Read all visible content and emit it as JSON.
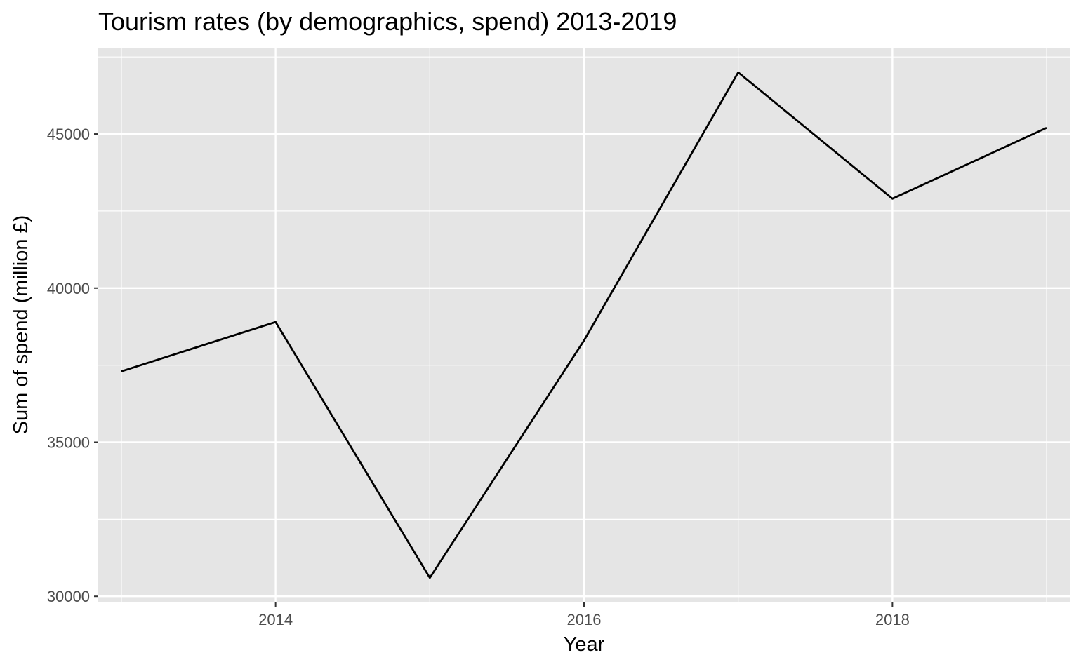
{
  "chart_data": {
    "type": "line",
    "title": "Tourism rates (by demographics, spend) 2013-2019",
    "xlabel": "Year",
    "ylabel": "Sum of spend (million £)",
    "x": [
      2013,
      2014,
      2015,
      2016,
      2017,
      2018,
      2019
    ],
    "series": [
      {
        "values": [
          37300,
          38900,
          30600,
          38300,
          47000,
          42900,
          45200
        ]
      }
    ],
    "xlim": [
      2012.85,
      2019.15
    ],
    "ylim": [
      29800,
      47800
    ],
    "x_ticks": [
      2014,
      2016,
      2018
    ],
    "x_tick_labels": [
      "2014",
      "2016",
      "2018"
    ],
    "x_minor_ticks": [
      2013,
      2015,
      2017,
      2019
    ],
    "y_ticks": [
      30000,
      35000,
      40000,
      45000
    ],
    "y_tick_labels": [
      "30000",
      "35000",
      "40000",
      "45000"
    ],
    "y_minor_ticks": [
      32500,
      37500,
      42500,
      47500
    ],
    "grid": true,
    "legend": "none",
    "colors": {
      "panel_background": "#e5e5e5",
      "grid": "#ffffff",
      "line": "#000000",
      "tick_text": "#4d4d4d",
      "tick_mark": "#333333"
    }
  }
}
